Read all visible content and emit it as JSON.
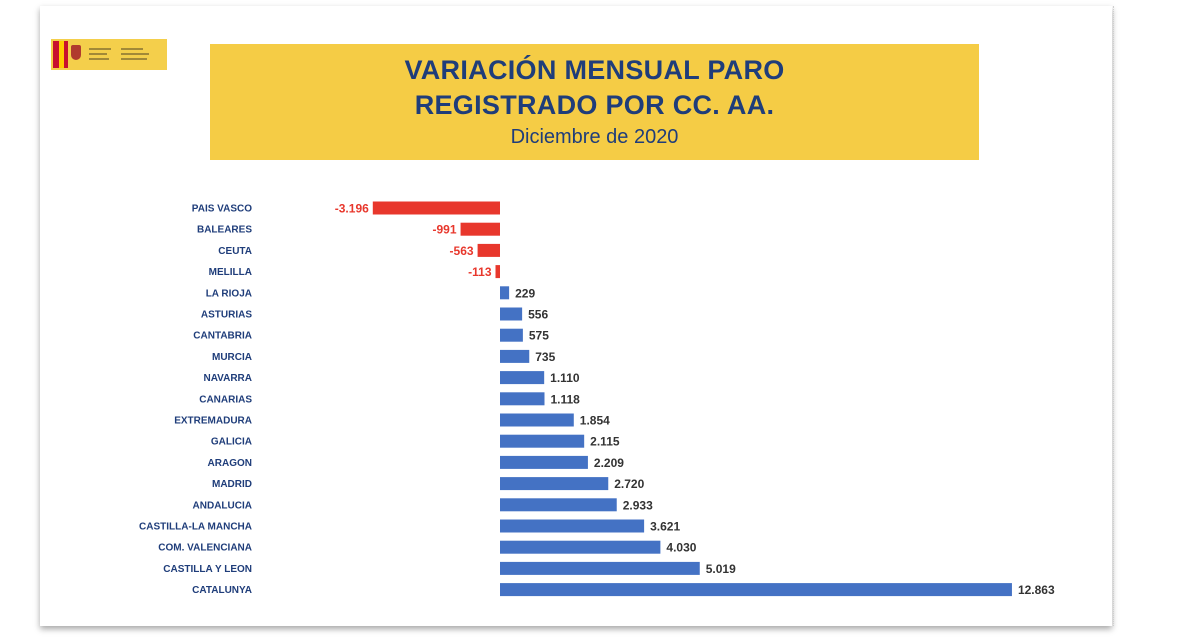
{
  "header": {
    "title_line1": "VARIACIÓN MENSUAL PARO",
    "title_line2": "REGISTRADO POR CC. AA.",
    "subtitle": "Diciembre de 2020"
  },
  "colors": {
    "title_bg": "#f5cc45",
    "title_text": "#1f3d7a",
    "positive": "#4472c4",
    "negative": "#e8372c",
    "category_label": "#1f3d7a",
    "positive_label": "#333333"
  },
  "chart_data": {
    "type": "bar",
    "orientation": "horizontal",
    "title": "VARIACIÓN MENSUAL PARO REGISTRADO POR CC. AA.",
    "subtitle": "Diciembre de 2020",
    "categories": [
      "PAIS VASCO",
      "BALEARES",
      "CEUTA",
      "MELILLA",
      "LA RIOJA",
      "ASTURIAS",
      "CANTABRIA",
      "MURCIA",
      "NAVARRA",
      "CANARIAS",
      "EXTREMADURA",
      "GALICIA",
      "ARAGON",
      "MADRID",
      "ANDALUCIA",
      "CASTILLA-LA MANCHA",
      "COM. VALENCIANA",
      "CASTILLA Y LEON",
      "CATALUNYA"
    ],
    "values": [
      -3196,
      -991,
      -563,
      -113,
      229,
      556,
      575,
      735,
      1110,
      1118,
      1854,
      2115,
      2209,
      2720,
      2933,
      3621,
      4030,
      5019,
      12863
    ],
    "value_labels": [
      "-3.196",
      "-991",
      "-563",
      "-113",
      "229",
      "556",
      "575",
      "735",
      "1.110",
      "1.118",
      "1.854",
      "2.115",
      "2.209",
      "2.720",
      "2.933",
      "3.621",
      "4.030",
      "5.019",
      "12.863"
    ],
    "xlim": [
      -3196,
      12863
    ],
    "grid": false,
    "legend": "none"
  }
}
